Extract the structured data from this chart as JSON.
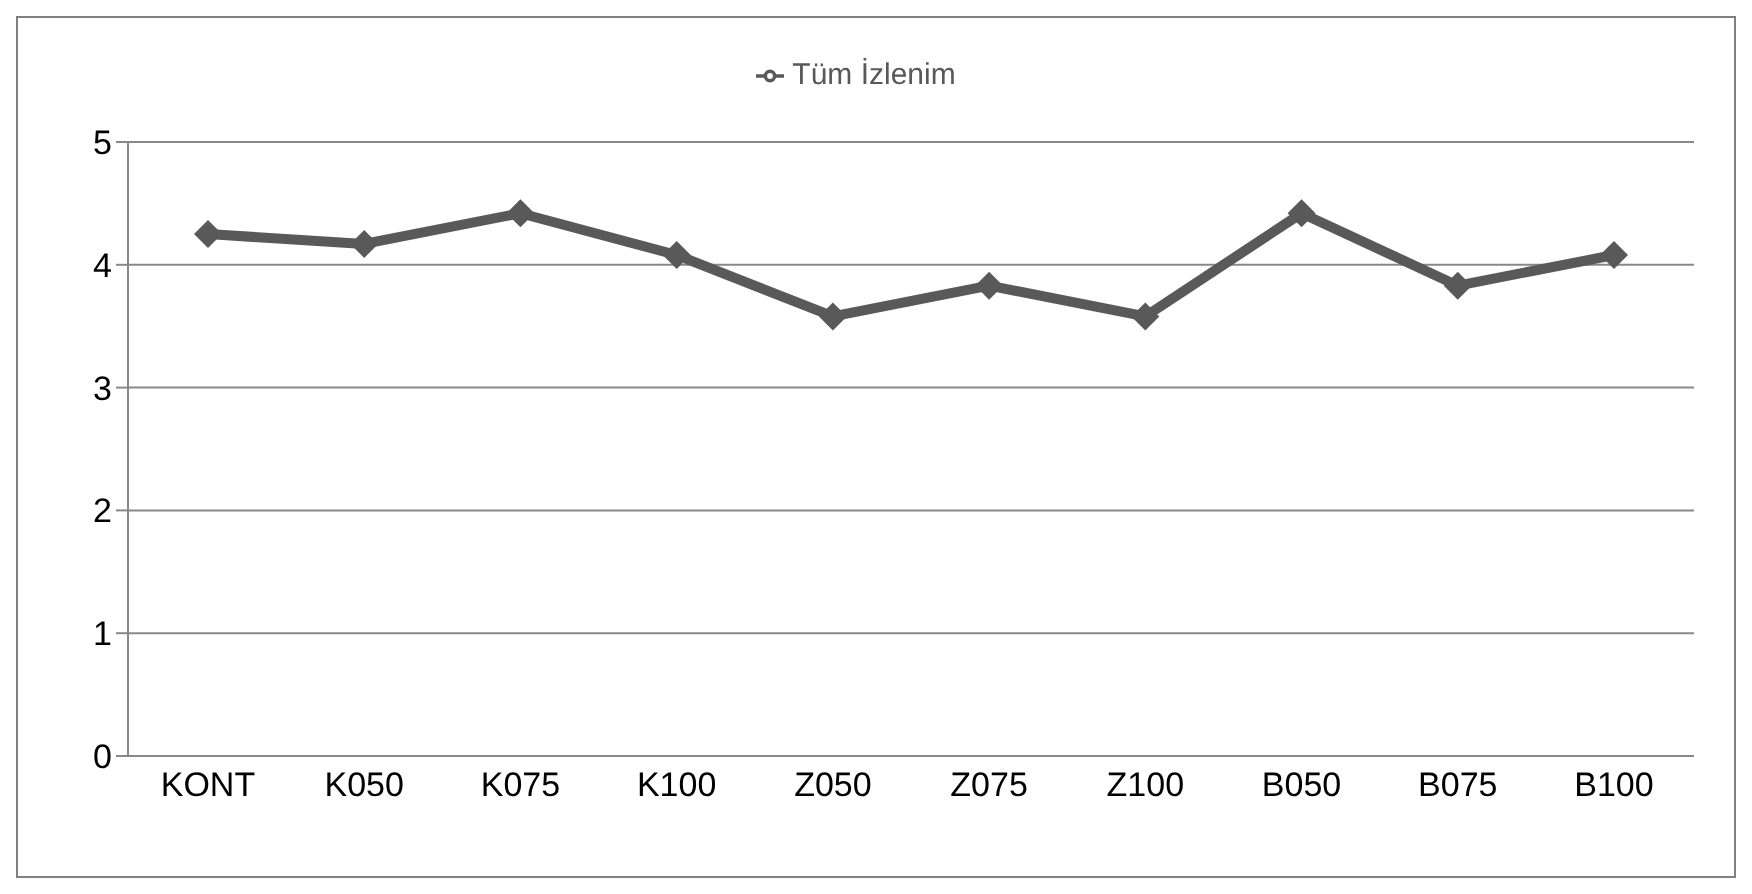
{
  "chart_data": {
    "type": "line",
    "categories": [
      "KONT",
      "K050",
      "K075",
      "K100",
      "Z050",
      "Z075",
      "Z100",
      "B050",
      "B075",
      "B100"
    ],
    "series": [
      {
        "name": "Tüm İzlenim",
        "color": "#595959",
        "values": [
          4.25,
          4.17,
          4.42,
          4.08,
          3.58,
          3.83,
          3.58,
          4.42,
          3.83,
          4.08
        ]
      }
    ],
    "ylim": [
      0,
      5
    ],
    "yticks": [
      0,
      1,
      2,
      3,
      4,
      5
    ],
    "grid": "y",
    "legend": "top",
    "marker": "diamond",
    "line_style": "solid"
  }
}
